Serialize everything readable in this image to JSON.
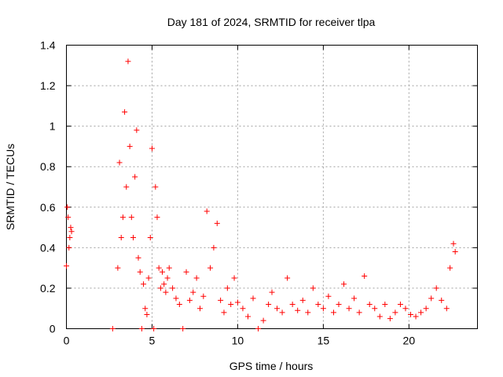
{
  "chart_data": {
    "type": "scatter",
    "title": "Day 181 of 2024, SRMTID for receiver tlpa",
    "xlabel": "GPS time / hours",
    "ylabel": "SRMTID / TECUs",
    "xlim": [
      0,
      24
    ],
    "ylim": [
      0,
      1.4
    ],
    "xticks": [
      0,
      5,
      10,
      15,
      20
    ],
    "yticks": [
      0,
      0.2,
      0.4,
      0.6,
      0.8,
      1,
      1.2,
      1.4
    ],
    "xtick_labels": [
      "0",
      "5",
      "10",
      "15",
      "20"
    ],
    "ytick_labels": [
      "0",
      "0.2",
      "0.4",
      "0.6",
      "0.8",
      "1",
      "1.2",
      "1.4"
    ],
    "grid": true,
    "marker": "+",
    "color": "#ff0000",
    "series": [
      {
        "name": "SRMTID",
        "x": [
          0.0,
          0.05,
          0.1,
          0.15,
          0.2,
          0.25,
          0.3,
          2.7,
          3.0,
          3.1,
          3.2,
          3.3,
          3.4,
          3.5,
          3.6,
          3.7,
          3.8,
          3.9,
          4.0,
          4.1,
          4.2,
          4.3,
          4.4,
          4.5,
          4.6,
          4.7,
          4.8,
          4.9,
          5.0,
          5.1,
          5.2,
          5.3,
          5.4,
          5.5,
          5.6,
          5.7,
          5.8,
          5.9,
          6.0,
          6.2,
          6.4,
          6.6,
          6.8,
          7.0,
          7.2,
          7.4,
          7.6,
          7.8,
          8.0,
          8.2,
          8.4,
          8.6,
          8.8,
          9.0,
          9.2,
          9.4,
          9.6,
          9.8,
          10.0,
          10.3,
          10.6,
          10.9,
          11.2,
          11.5,
          11.8,
          12.0,
          12.3,
          12.6,
          12.9,
          13.2,
          13.5,
          13.8,
          14.1,
          14.4,
          14.7,
          15.0,
          15.3,
          15.6,
          15.9,
          16.2,
          16.5,
          16.8,
          17.1,
          17.4,
          17.7,
          18.0,
          18.3,
          18.6,
          18.9,
          19.2,
          19.5,
          19.8,
          20.1,
          20.4,
          20.7,
          21.0,
          21.3,
          21.6,
          21.9,
          22.2,
          22.4,
          22.6,
          22.7
        ],
        "y": [
          0.31,
          0.6,
          0.55,
          0.4,
          0.45,
          0.5,
          0.48,
          0.0,
          0.3,
          0.82,
          0.45,
          0.55,
          1.07,
          0.7,
          1.32,
          0.9,
          0.55,
          0.45,
          0.75,
          0.98,
          0.35,
          0.28,
          0.0,
          0.22,
          0.1,
          0.07,
          0.25,
          0.45,
          0.89,
          0.0,
          0.7,
          0.55,
          0.3,
          0.2,
          0.28,
          0.22,
          0.18,
          0.25,
          0.3,
          0.2,
          0.15,
          0.12,
          0.0,
          0.28,
          0.14,
          0.18,
          0.25,
          0.1,
          0.16,
          0.58,
          0.3,
          0.4,
          0.52,
          0.14,
          0.08,
          0.2,
          0.12,
          0.25,
          0.13,
          0.1,
          0.06,
          0.15,
          0.0,
          0.04,
          0.12,
          0.18,
          0.1,
          0.08,
          0.25,
          0.12,
          0.09,
          0.14,
          0.08,
          0.2,
          0.12,
          0.1,
          0.16,
          0.08,
          0.12,
          0.22,
          0.1,
          0.15,
          0.08,
          0.26,
          0.12,
          0.1,
          0.06,
          0.12,
          0.05,
          0.08,
          0.12,
          0.1,
          0.07,
          0.06,
          0.08,
          0.1,
          0.15,
          0.2,
          0.14,
          0.1,
          0.3,
          0.42,
          0.38
        ]
      }
    ]
  }
}
